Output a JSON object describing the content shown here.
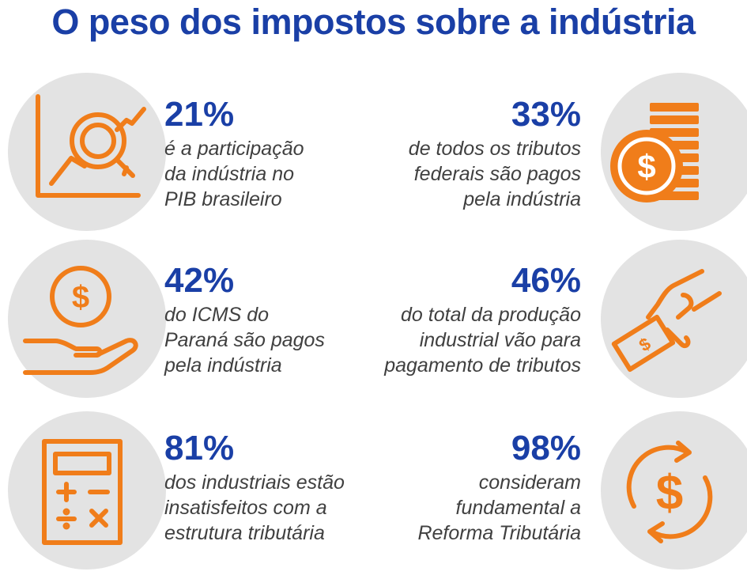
{
  "title": "O peso dos impostos sobre a indústria",
  "colors": {
    "title": "#1a3fa6",
    "percent": "#1a3fa6",
    "text": "#404040",
    "icon": "#f07d1a",
    "circle": "#e3e3e3"
  },
  "stats": [
    {
      "percent": "21%",
      "lines": [
        "é a participação",
        "da indústria no",
        "PIB brasileiro"
      ],
      "icon": "chart-magnifier-icon"
    },
    {
      "percent": "33%",
      "lines": [
        "de todos os tributos",
        "federais são pagos",
        "pela indústria"
      ],
      "icon": "coin-stack-icon"
    },
    {
      "percent": "42%",
      "lines": [
        "do ICMS do",
        "Paraná são pagos",
        "pela indústria"
      ],
      "icon": "hand-coin-icon"
    },
    {
      "percent": "46%",
      "lines": [
        "do total da produção",
        "industrial vão para",
        "pagamento de tributos"
      ],
      "icon": "hand-money-icon"
    },
    {
      "percent": "81%",
      "lines": [
        "dos industriais estão",
        "insatisfeitos com a",
        "estrutura tributária"
      ],
      "icon": "calculator-icon"
    },
    {
      "percent": "98%",
      "lines": [
        "consideram",
        "fundamental a",
        "Reforma Tributária"
      ],
      "icon": "dollar-cycle-icon"
    }
  ]
}
